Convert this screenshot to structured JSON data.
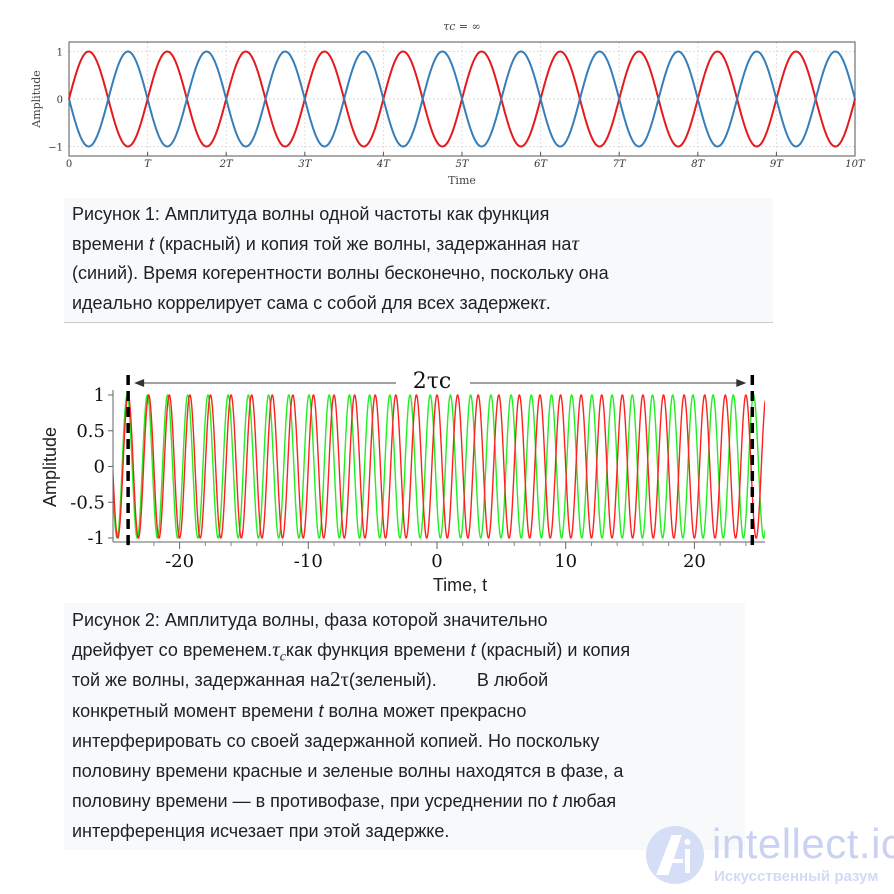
{
  "chart_data": [
    {
      "type": "line",
      "title": "τc = ∞",
      "xlabel": "Time",
      "ylabel": "Amplitude",
      "xlim": [
        0,
        10
      ],
      "ylim": [
        -1,
        1
      ],
      "x_unit": "T",
      "xtick_labels": [
        "0",
        "T",
        "2T",
        "3T",
        "4T",
        "5T",
        "6T",
        "7T",
        "8T",
        "9T",
        "10T"
      ],
      "ytick_labels": [
        "1",
        "0",
        "−1"
      ],
      "yticks": [
        1,
        0,
        -1
      ],
      "grid": true,
      "series": [
        {
          "function": "sin(2πt/T)",
          "color": "#e41a1c"
        },
        {
          "function": "−sin(2πt/T)",
          "color": "#377eb8"
        }
      ]
    },
    {
      "type": "line",
      "xlabel": "Time, t",
      "ylabel": "Amplitude",
      "xlim": [
        -25.3,
        25.5
      ],
      "ylim": [
        -1,
        1
      ],
      "xticks": [
        -20,
        -10,
        0,
        10,
        20
      ],
      "xtick_labels": [
        "-20",
        "-10",
        "0",
        "10",
        "20"
      ],
      "yticks": [
        1,
        0.5,
        0,
        -0.5,
        -1
      ],
      "ytick_labels": [
        "1",
        "0.5",
        "0",
        "-0.5",
        "-1"
      ],
      "annotation": {
        "label": "2τc",
        "from": -24,
        "to": 24.5
      },
      "series": [
        {
          "period": 1.6,
          "color": "#ff2020"
        },
        {
          "period": 1.57,
          "color": "#22ee22"
        }
      ]
    }
  ],
  "captions": {
    "fig1": {
      "l1": "Рисунок 1: Амплитуда волны одной частоты как функция",
      "l2a": "времени ",
      "l2t": "t",
      "l2b": " (красный) и копия той же волны, задержанная на",
      "l2tau": "τ",
      "l3": "(синий). Время когерентности волны бесконечно, поскольку она",
      "l4": "идеально коррелирует сама с собой для всех задержек",
      "l4tau": "τ",
      "l4end": "."
    },
    "fig2": {
      "l1": "Рисунок 2: Амплитуда волны, фаза которой значительно",
      "l2a": "дрейфует со временем.",
      "l2tau": "τ",
      "l2c": "c",
      "l2b": "как функция времени ",
      "l2t": "t",
      "l2d": " (красный) и копия",
      "l3a": "той же волны, задержанная на",
      "l3m": "2τ",
      "l3b": "(зеленый).        В любой",
      "l4a": "конкретный момент времени ",
      "l4t": "t",
      "l4b": " волна может прекрасно",
      "l5": "интерферировать со своей задержанной копией. Но поскольку",
      "l6": "половину времени красные и зеленые волны находятся в фазе, а",
      "l7a": "половину времени — в противофазе, при усреднении по ",
      "l7t": "t",
      "l7b": " любая",
      "l8": "интерференция исчезает при этой задержке."
    }
  },
  "watermark": {
    "brand": "intellect.icu",
    "tagline": "Искусственный разум"
  }
}
